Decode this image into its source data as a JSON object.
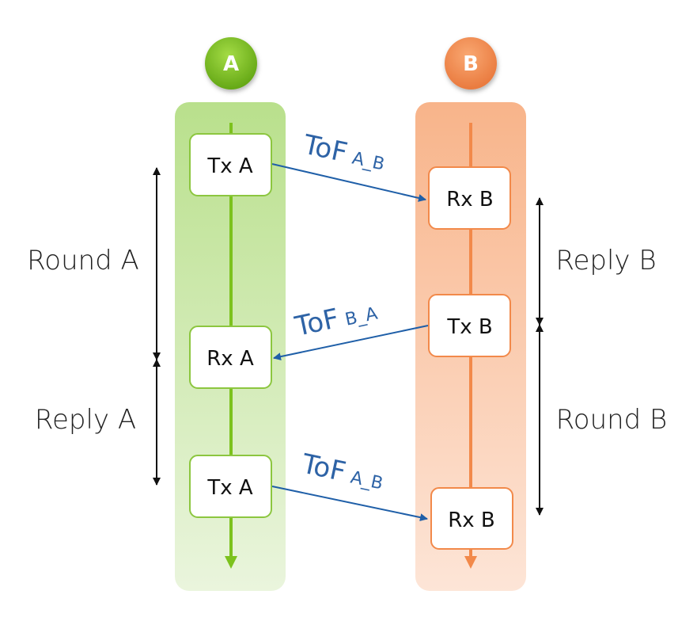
{
  "devices": {
    "a": {
      "label": "A",
      "color": "#7cc21d",
      "lane_top": "#b9e08c",
      "lane_bottom": "#e9f5dc"
    },
    "b": {
      "label": "B",
      "color": "#f2894a",
      "lane_top": "#f8b48a",
      "lane_bottom": "#fde4d6"
    }
  },
  "nodes": {
    "a_tx_1": "Tx A",
    "a_rx": "Rx A",
    "a_tx_2": "Tx A",
    "b_rx_1": "Rx B",
    "b_tx": "Tx B",
    "b_rx_2": "Rx B"
  },
  "messages": [
    {
      "main": "ToF",
      "sub": "A_B"
    },
    {
      "main": "ToF",
      "sub": "B_A"
    },
    {
      "main": "ToF",
      "sub": "A_B"
    }
  ],
  "intervals": {
    "round_a": "Round A",
    "reply_a": "Reply A",
    "reply_b": "Reply B",
    "round_b": "Round B"
  },
  "colors": {
    "message_arrow": "#1f5fa8",
    "bracket": "#111111"
  }
}
